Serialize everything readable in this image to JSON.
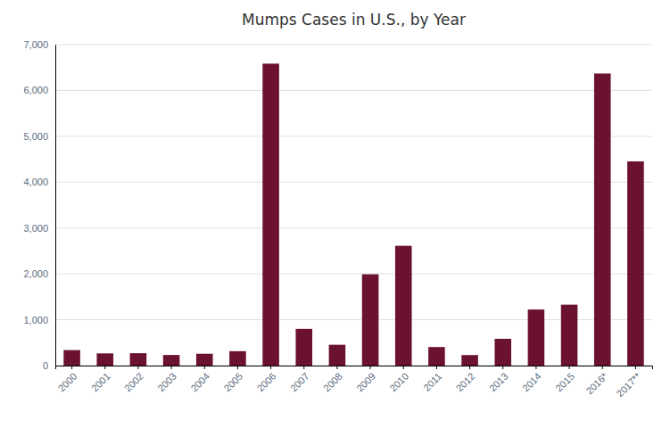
{
  "chart_data": {
    "type": "bar",
    "title": "Mumps Cases in U.S., by Year",
    "categories": [
      "2000",
      "2001",
      "2002",
      "2003",
      "2004",
      "2005",
      "2006",
      "2007",
      "2008",
      "2009",
      "2010",
      "2011",
      "2012",
      "2013",
      "2014",
      "2015",
      "2016*",
      "2017**"
    ],
    "values": [
      338,
      266,
      270,
      231,
      258,
      314,
      6584,
      800,
      454,
      1991,
      2612,
      404,
      229,
      584,
      1223,
      1329,
      6369,
      4453
    ],
    "color": "#6B1232",
    "ylim": [
      0,
      7000
    ],
    "yticks": [
      0,
      {
        "value": 1000,
        "label": "1,000"
      },
      {
        "value": 2000,
        "label": "2,000"
      },
      {
        "value": 3000,
        "label": "3,000"
      },
      {
        "value": 4000,
        "label": "4,000"
      },
      {
        "value": 5000,
        "label": "5,000"
      },
      {
        "value": 6000,
        "label": "6,000"
      },
      {
        "value": 7000,
        "label": "7,000"
      }
    ],
    "grid": true
  }
}
